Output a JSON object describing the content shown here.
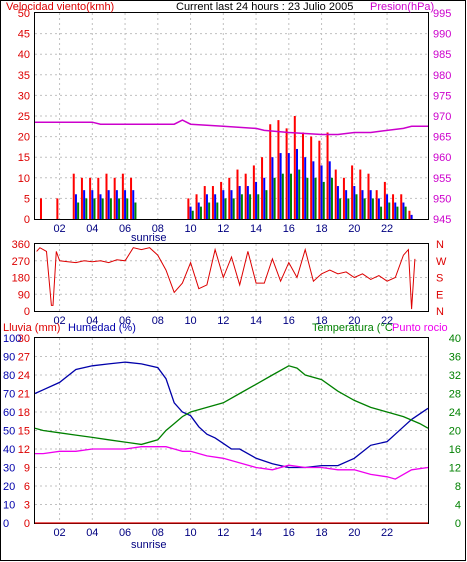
{
  "header": {
    "wind_label": "Velocidad viento(kmh)",
    "current": "Current last 24 hours : 23 Julio 2005",
    "pressure_label": "Presion(hPa)"
  },
  "labels": {
    "sunrise": "sunrise",
    "rain_label": "Lluvia (mm)",
    "humidity_label": "Humedad (%)",
    "temp_label": "Temperatura (°C",
    "dew_label": "Punto rocio"
  },
  "colors": {
    "wind_speed": "#ff0000",
    "wind_gust": "#0000ff",
    "wind_avg": "#008000",
    "pressure": "#cc00cc",
    "direction": "#dd0000",
    "humidity": "#0000aa",
    "temperature": "#008000",
    "dew_point": "#ee00ee",
    "rain": "#dd0000"
  },
  "chart_data": [
    {
      "type": "bar",
      "name": "wind-pressure",
      "title": "Current last 24 hours : 23 Julio 2005",
      "xlabel": "",
      "x_ticks": [
        "02",
        "04",
        "06",
        "08",
        "10",
        "12",
        "14",
        "16",
        "18",
        "20",
        "22"
      ],
      "xlim": [
        0.5,
        24.5
      ],
      "ylabel": "Velocidad viento(kmh)",
      "ylim": [
        0,
        50
      ],
      "y_ticks": [
        0,
        5,
        10,
        15,
        20,
        25,
        30,
        35,
        40,
        45,
        50
      ],
      "y2label": "Presion(hPa)",
      "y2lim": [
        945,
        995
      ],
      "y2_ticks": [
        945,
        950,
        955,
        960,
        965,
        970,
        975,
        980,
        985,
        990,
        995
      ],
      "series": [
        {
          "axis": "left",
          "x": [
            1.0,
            2.0,
            3.0,
            3.5,
            4.0,
            4.5,
            5.0,
            5.5,
            6.0,
            6.5,
            7.0,
            7.5,
            8.0,
            8.5,
            9.0,
            9.5,
            10.0,
            10.5,
            11.0,
            11.5,
            12.0,
            12.5,
            13.0,
            13.5,
            14.0,
            14.5,
            15.0,
            15.5,
            16.0,
            16.5,
            17.0,
            17.5,
            18.0,
            18.5,
            19.0,
            19.5,
            20.0,
            20.5,
            21.0,
            21.5,
            22.0,
            22.5,
            23.0,
            23.5
          ],
          "values": [
            5,
            5,
            11,
            10,
            10,
            10,
            11,
            10,
            11,
            10,
            0,
            0,
            0,
            0,
            0,
            0,
            5,
            6,
            8,
            8,
            9,
            10,
            12,
            11,
            13,
            15,
            23,
            24,
            22,
            25,
            21,
            20,
            19,
            21,
            12,
            10,
            13,
            12,
            11,
            7,
            9,
            6,
            6,
            2
          ]
        },
        {
          "axis": "left",
          "x": [
            1.0,
            2.0,
            3.0,
            3.5,
            4.0,
            4.5,
            5.0,
            5.5,
            6.0,
            6.5,
            7.0,
            7.5,
            8.0,
            8.5,
            9.0,
            9.5,
            10.0,
            10.5,
            11.0,
            11.5,
            12.0,
            12.5,
            13.0,
            13.5,
            14.0,
            14.5,
            15.0,
            15.5,
            16.0,
            16.5,
            17.0,
            17.5,
            18.0,
            18.5,
            19.0,
            19.5,
            20.0,
            20.5,
            21.0,
            21.5,
            22.0,
            22.5,
            23.0,
            23.5
          ],
          "values": [
            0,
            0,
            6,
            7,
            7,
            6,
            7,
            7,
            7,
            7,
            0,
            0,
            0,
            0,
            0,
            0,
            3,
            4,
            6,
            6,
            7,
            7,
            8,
            8,
            9,
            10,
            15,
            16,
            16,
            17,
            15,
            14,
            13,
            14,
            8,
            7,
            8,
            7,
            7,
            5,
            6,
            4,
            4,
            1
          ]
        },
        {
          "axis": "left",
          "x": [
            1.0,
            2.0,
            3.0,
            3.5,
            4.0,
            4.5,
            5.0,
            5.5,
            6.0,
            6.5,
            7.0,
            7.5,
            8.0,
            8.5,
            9.0,
            9.5,
            10.0,
            10.5,
            11.0,
            11.5,
            12.0,
            12.5,
            13.0,
            13.5,
            14.0,
            14.5,
            15.0,
            15.5,
            16.0,
            16.5,
            17.0,
            17.5,
            18.0,
            18.5,
            19.0,
            19.5,
            20.0,
            20.5,
            21.0,
            21.5,
            22.0,
            22.5,
            23.0,
            23.5
          ],
          "values": [
            0,
            0,
            4,
            5,
            5,
            5,
            5,
            5,
            5,
            4,
            0,
            0,
            0,
            0,
            0,
            0,
            2,
            3,
            4,
            4,
            5,
            5,
            6,
            6,
            6,
            7,
            10,
            11,
            11,
            12,
            10,
            10,
            9,
            10,
            5,
            5,
            6,
            5,
            5,
            3,
            4,
            3,
            3,
            0
          ]
        },
        {
          "axis": "right",
          "x": [
            0.5,
            2.0,
            3.0,
            4.0,
            4.5,
            6.0,
            8.0,
            9.0,
            9.5,
            10.0,
            12.0,
            14.0,
            14.5,
            16.0,
            18.0,
            19.0,
            20.0,
            21.0,
            22.0,
            23.0,
            23.5,
            24.5
          ],
          "values": [
            968.5,
            968.5,
            968.5,
            968.5,
            968,
            968,
            968,
            968,
            969,
            968,
            967.5,
            967,
            966.5,
            966,
            965.5,
            965.5,
            966,
            966,
            966.5,
            967,
            967.5,
            967.5
          ]
        }
      ]
    },
    {
      "type": "line",
      "name": "wind-direction",
      "x_ticks": [
        "02",
        "04",
        "06",
        "08",
        "10",
        "12",
        "14",
        "16",
        "18",
        "20",
        "22"
      ],
      "xlim": [
        0.5,
        24.5
      ],
      "ylim": [
        0,
        360
      ],
      "y_ticks": [
        0,
        90,
        180,
        270,
        360
      ],
      "y2_labels": [
        "N",
        "W",
        "S",
        "E",
        "N"
      ],
      "series": [
        {
          "x": [
            0.6,
            0.8,
            1.0,
            1.2,
            1.5,
            1.6,
            1.8,
            2.0,
            2.5,
            3.0,
            3.5,
            4.0,
            4.5,
            5.0,
            5.5,
            6.0,
            6.5,
            7.0,
            7.5,
            8.0,
            8.5,
            9.0,
            9.5,
            10.0,
            10.5,
            11.0,
            11.5,
            12.0,
            12.5,
            13.0,
            13.5,
            14.0,
            14.5,
            15.0,
            15.5,
            16.0,
            16.5,
            17.0,
            17.5,
            18.0,
            18.5,
            19.0,
            19.5,
            20.0,
            20.5,
            21.0,
            21.5,
            22.0,
            22.5,
            23.0,
            23.3,
            23.5,
            23.7
          ],
          "values": [
            320,
            340,
            330,
            320,
            30,
            30,
            320,
            270,
            265,
            260,
            270,
            265,
            270,
            260,
            275,
            270,
            340,
            330,
            340,
            300,
            220,
            100,
            150,
            260,
            120,
            140,
            330,
            180,
            290,
            140,
            320,
            150,
            150,
            280,
            160,
            260,
            180,
            330,
            160,
            200,
            220,
            200,
            210,
            180,
            200,
            170,
            190,
            160,
            180,
            300,
            330,
            10,
            280
          ]
        }
      ]
    },
    {
      "type": "line",
      "name": "humidity-temperature",
      "x_ticks": [
        "02",
        "04",
        "06",
        "08",
        "10",
        "12",
        "14",
        "16",
        "18",
        "20",
        "22"
      ],
      "xlim": [
        0.5,
        24.5
      ],
      "ylabel": "Lluvia (mm)",
      "ylim": [
        0,
        30
      ],
      "y_ticks": [
        0,
        3,
        6,
        9,
        12,
        15,
        18,
        21,
        24,
        27,
        30
      ],
      "ylabel_b": "Humedad (%)",
      "ylim_b": [
        0,
        100
      ],
      "y_ticks_b": [
        0,
        10,
        20,
        30,
        40,
        50,
        60,
        70,
        80,
        90,
        100
      ],
      "y2label": "Temperatura (°C",
      "y2label_b": "Punto rocio",
      "y2lim": [
        0,
        40
      ],
      "y2_ticks": [
        0,
        4,
        8,
        12,
        16,
        20,
        24,
        28,
        32,
        36,
        40
      ],
      "series": [
        {
          "axis": "humidity",
          "x": [
            0.5,
            1.0,
            2.0,
            3.0,
            4.0,
            5.0,
            6.0,
            7.0,
            8.0,
            8.5,
            9.0,
            9.5,
            10.0,
            10.5,
            11.0,
            11.5,
            12.0,
            12.5,
            13.0,
            14.0,
            15.0,
            16.0,
            17.0,
            18.0,
            19.0,
            20.0,
            21.0,
            22.0,
            22.5,
            23.0,
            23.5,
            24.5
          ],
          "values": [
            70,
            72,
            76,
            83,
            85,
            86,
            87,
            86,
            84,
            78,
            65,
            60,
            58,
            52,
            48,
            46,
            43,
            40,
            40,
            35,
            32,
            30,
            30,
            31,
            31,
            35,
            42,
            44,
            48,
            52,
            56,
            62
          ]
        },
        {
          "axis": "temperature",
          "x": [
            0.5,
            1.0,
            2.0,
            3.0,
            4.0,
            5.0,
            6.0,
            7.0,
            8.0,
            8.5,
            9.0,
            9.5,
            10.0,
            11.0,
            12.0,
            13.0,
            14.0,
            15.0,
            16.0,
            16.5,
            17.0,
            18.0,
            19.0,
            20.0,
            21.0,
            22.0,
            23.0,
            24.0,
            24.5
          ],
          "values": [
            20.5,
            20.0,
            19.5,
            19.0,
            18.5,
            18.0,
            17.5,
            17.0,
            18.0,
            20.0,
            21.5,
            23.0,
            24.0,
            25.0,
            26.0,
            28.0,
            30.0,
            32.0,
            34.0,
            33.5,
            32.0,
            31.0,
            28.5,
            26.5,
            25.0,
            24.0,
            23.0,
            21.5,
            20.5
          ]
        },
        {
          "axis": "temperature",
          "x": [
            0.5,
            1.0,
            2.0,
            3.0,
            4.0,
            5.0,
            6.0,
            7.0,
            8.0,
            8.5,
            9.0,
            9.5,
            10.0,
            11.0,
            12.0,
            13.0,
            14.0,
            15.0,
            16.0,
            17.0,
            18.0,
            19.0,
            20.0,
            21.0,
            22.0,
            22.5,
            23.0,
            23.5,
            24.5
          ],
          "values": [
            15.0,
            15.0,
            15.5,
            15.5,
            16.0,
            16.0,
            16.0,
            16.5,
            16.5,
            16.5,
            16.0,
            15.5,
            15.5,
            14.5,
            14.0,
            13.0,
            12.0,
            11.5,
            12.5,
            12.0,
            12.0,
            11.5,
            11.5,
            10.5,
            10.0,
            9.5,
            10.5,
            11.5,
            12.0
          ]
        },
        {
          "axis": "rain",
          "x": [
            0.5,
            24.5
          ],
          "values": [
            0,
            0
          ]
        }
      ]
    }
  ]
}
